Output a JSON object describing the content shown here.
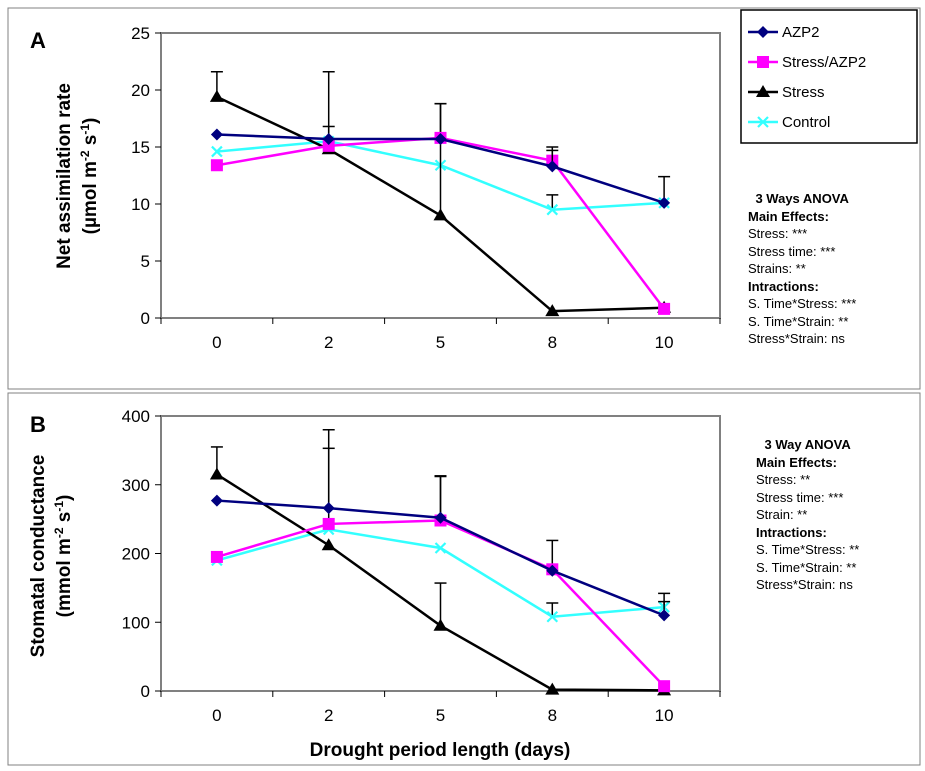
{
  "chart_data": [
    {
      "type": "line",
      "panel_letter": "A",
      "categories": [
        "0",
        "2",
        "5",
        "8",
        "10"
      ],
      "ylabel": "Net assimilation rate",
      "ylabel_unit_parts": [
        "(µmol m",
        "-2",
        " s",
        "-1",
        ")"
      ],
      "ylim": [
        0,
        25
      ],
      "yticks": [
        0,
        5,
        10,
        15,
        20,
        25
      ],
      "series": [
        {
          "name": "AZP2",
          "values": [
            16.1,
            15.7,
            15.7,
            13.3,
            10.1
          ],
          "err_up": [
            0,
            0,
            0,
            1.4,
            0
          ],
          "color": "#00007f",
          "marker": "diamond"
        },
        {
          "name": "Stress/AZP2",
          "values": [
            13.4,
            15.1,
            15.8,
            13.8,
            0.8
          ],
          "err_up": [
            0,
            1.7,
            3.0,
            1.2,
            0
          ],
          "color": "#ff00ff",
          "marker": "square"
        },
        {
          "name": "Stress",
          "values": [
            19.4,
            14.8,
            9.0,
            0.6,
            0.9
          ],
          "err_up": [
            2.2,
            6.8,
            9.8,
            0,
            0
          ],
          "color": "#000000",
          "marker": "triangle"
        },
        {
          "name": "Control",
          "values": [
            14.6,
            15.5,
            13.4,
            9.5,
            10.1
          ],
          "err_up": [
            0,
            0,
            0,
            1.3,
            2.3
          ],
          "color": "#33ffff",
          "marker": "x"
        }
      ],
      "anova": {
        "title": "3 Ways ANOVA",
        "main_header": "Main Effects:",
        "main": [
          "Stress: ***",
          "Stress time: ***",
          "Strains: **"
        ],
        "int_header": "Intractions:",
        "interactions": [
          "S. Time*Stress: ***",
          "S. Time*Strain: **",
          "Stress*Strain: ns"
        ]
      }
    },
    {
      "type": "line",
      "panel_letter": "B",
      "categories": [
        "0",
        "2",
        "5",
        "8",
        "10"
      ],
      "xlabel": "Drought period length (days)",
      "ylabel": "Stomatal conductance",
      "ylabel_unit_parts": [
        "(mmol m",
        "-2",
        " s",
        "-1",
        ")"
      ],
      "ylim": [
        0,
        400
      ],
      "yticks": [
        0,
        100,
        200,
        300,
        400
      ],
      "series": [
        {
          "name": "AZP2",
          "values": [
            277,
            266,
            252,
            175,
            110
          ],
          "err_up": [
            0,
            87,
            60,
            0,
            20
          ],
          "color": "#00007f",
          "marker": "diamond"
        },
        {
          "name": "Stress/AZP2",
          "values": [
            195,
            243,
            248,
            177,
            7
          ],
          "err_up": [
            0,
            137,
            65,
            42,
            0
          ],
          "color": "#ff00ff",
          "marker": "square"
        },
        {
          "name": "Stress",
          "values": [
            315,
            212,
            95,
            2,
            1
          ],
          "err_up": [
            40,
            0,
            62,
            0,
            0
          ],
          "color": "#000000",
          "marker": "triangle"
        },
        {
          "name": "Control",
          "values": [
            190,
            235,
            208,
            108,
            122
          ],
          "err_up": [
            0,
            0,
            0,
            20,
            20
          ],
          "color": "#33ffff",
          "marker": "x"
        }
      ],
      "anova": {
        "title": "3 Way ANOVA",
        "main_header": "Main Effects:",
        "main": [
          "Stress: **",
          "Stress time: ***",
          "Strain: **"
        ],
        "int_header": "Intractions:",
        "interactions": [
          "S. Time*Stress: **",
          "S. Time*Strain: **",
          "Stress*Strain: ns"
        ]
      }
    }
  ]
}
